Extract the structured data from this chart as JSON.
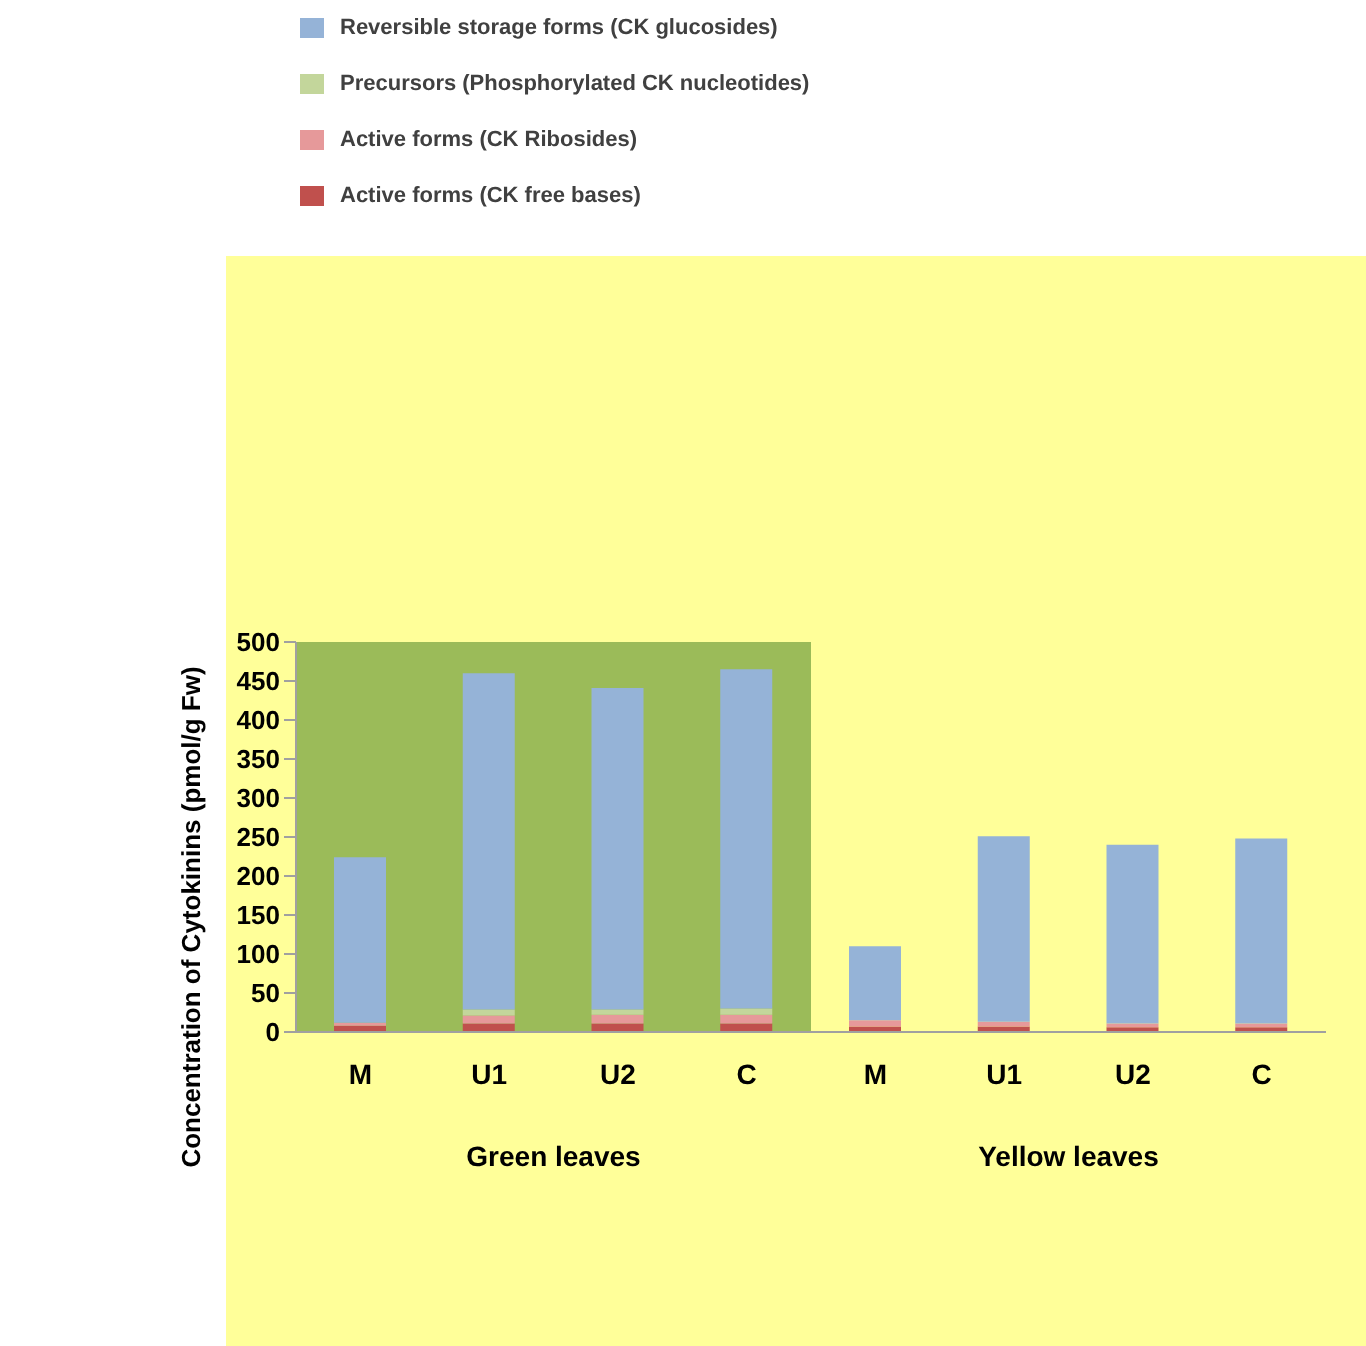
{
  "chart_data": {
    "type": "bar",
    "stacked": true,
    "ylabel": "Concentration of Cytokinins (pmol/g Fw)",
    "categories": [
      "M",
      "U1",
      "U2",
      "C",
      "M",
      "U1",
      "U2",
      "C"
    ],
    "series": [
      {
        "name": "Active forms (CK free bases)",
        "color": "#c0504d",
        "values": [
          8,
          11,
          11,
          11,
          7,
          7,
          6,
          6
        ]
      },
      {
        "name": "Active forms (CK Ribosides)",
        "color": "#e6999a",
        "values": [
          4,
          10,
          11,
          11,
          8,
          6,
          5,
          5
        ]
      },
      {
        "name": "Precursors (Phosphorylated CK nucleotides)",
        "color": "#c3d69b",
        "values": [
          null,
          8,
          7,
          8,
          null,
          null,
          null,
          null
        ]
      },
      {
        "name": "Reversible storage forms (CK glucosides)",
        "color": "#95b3d7",
        "values": [
          212,
          431,
          412,
          435,
          95,
          238,
          229,
          237
        ]
      }
    ],
    "bands": [
      {
        "axis": "x",
        "from": "M",
        "to": "C",
        "color": "#9bbb59"
      }
    ],
    "annotations": [
      "Green leaves",
      "Yellow leaves"
    ],
    "ylim": [
      0,
      500
    ],
    "yticks": [
      0,
      50,
      100,
      150,
      200,
      250,
      300,
      350,
      400,
      450,
      500
    ],
    "legend": "top left",
    "grid": false
  }
}
